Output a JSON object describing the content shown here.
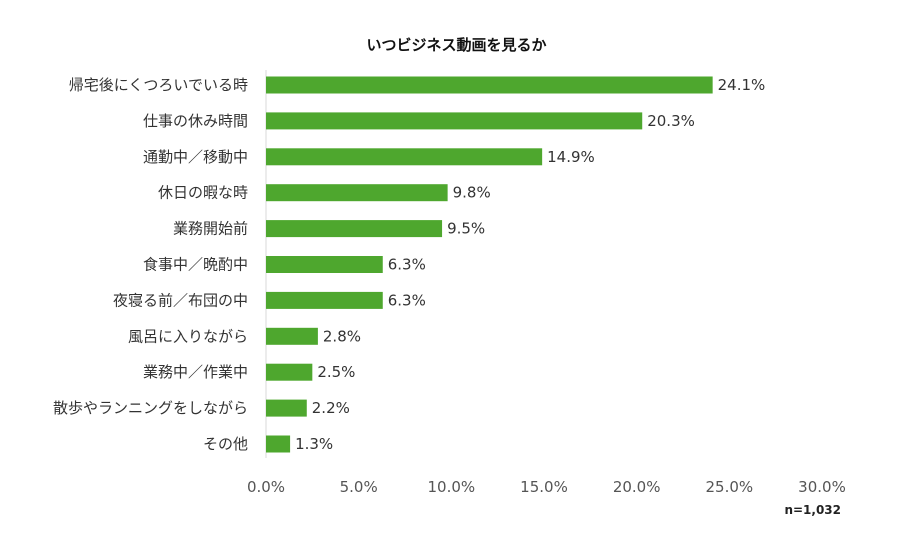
{
  "chart_data": {
    "type": "bar",
    "orientation": "horizontal",
    "title": "いつビジネス動画を見るか",
    "categories": [
      "帰宅後にくつろいでいる時",
      "仕事の休み時間",
      "通勤中／移動中",
      "休日の暇な時",
      "業務開始前",
      "食事中／晩酌中",
      "夜寝る前／布団の中",
      "風呂に入りながら",
      "業務中／作業中",
      "散歩やランニングをしながら",
      "その他"
    ],
    "values": [
      24.1,
      20.3,
      14.9,
      9.8,
      9.5,
      6.3,
      6.3,
      2.8,
      2.5,
      2.2,
      1.3
    ],
    "value_labels": [
      "24.1%",
      "20.3%",
      "14.9%",
      "9.8%",
      "9.5%",
      "6.3%",
      "6.3%",
      "2.8%",
      "2.5%",
      "2.2%",
      "1.3%"
    ],
    "xlim": [
      0,
      30
    ],
    "x_ticks": [
      "0.0%",
      "5.0%",
      "10.0%",
      "15.0%",
      "20.0%",
      "25.0%",
      "30.0%"
    ],
    "grid": false,
    "legend": "none",
    "note": "n=1,032",
    "bar_color": "#4ea72e",
    "axis_color": "#d9d9d9",
    "text_color": "#333333"
  }
}
